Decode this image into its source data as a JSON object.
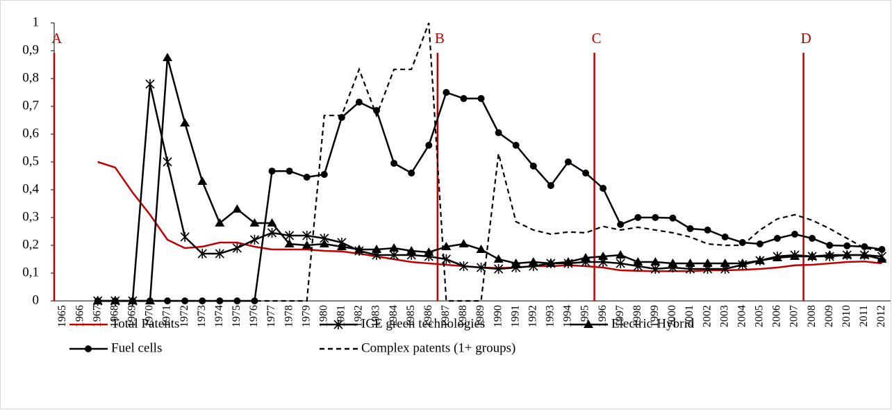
{
  "chart_data": {
    "type": "line",
    "categories": [
      "1965",
      "1966",
      "1967",
      "1968",
      "1969",
      "1970",
      "1971",
      "1972",
      "1973",
      "1974",
      "1975",
      "1976",
      "1977",
      "1978",
      "1979",
      "1980",
      "1981",
      "1982",
      "1983",
      "1984",
      "1985",
      "1986",
      "1987",
      "1988",
      "1989",
      "1990",
      "1991",
      "1992",
      "1993",
      "1994",
      "1995",
      "1996",
      "1997",
      "1998",
      "1999",
      "2000",
      "2001",
      "2002",
      "2003",
      "2004",
      "2005",
      "2006",
      "2007",
      "2008",
      "2009",
      "2010",
      "2011",
      "2012"
    ],
    "series": [
      {
        "name": "Total Patents",
        "color": "#c00000",
        "marker": "none",
        "dash": false,
        "values": [
          null,
          null,
          0.5,
          0.48,
          0.39,
          0.31,
          0.22,
          0.19,
          0.195,
          0.21,
          0.21,
          0.195,
          0.185,
          0.185,
          0.185,
          0.18,
          0.178,
          0.17,
          0.16,
          0.15,
          0.14,
          0.135,
          0.13,
          0.125,
          0.12,
          0.118,
          0.12,
          0.125,
          0.125,
          0.128,
          0.125,
          0.12,
          0.11,
          0.108,
          0.107,
          0.107,
          0.107,
          0.11,
          0.11,
          0.112,
          0.115,
          0.12,
          0.128,
          0.13,
          0.135,
          0.14,
          0.142,
          0.135
        ]
      },
      {
        "name": "ICE green technologies",
        "color": "#000000",
        "marker": "star",
        "dash": false,
        "values": [
          null,
          null,
          0,
          0,
          0,
          0.78,
          0.5,
          0.23,
          0.17,
          0.17,
          0.19,
          0.22,
          0.245,
          0.235,
          0.235,
          0.225,
          0.21,
          0.18,
          0.165,
          0.165,
          0.165,
          0.16,
          0.15,
          0.125,
          0.12,
          0.115,
          0.12,
          0.125,
          0.135,
          0.135,
          0.14,
          0.14,
          0.135,
          0.125,
          0.115,
          0.12,
          0.115,
          0.115,
          0.115,
          0.13,
          0.145,
          0.16,
          0.165,
          0.16,
          0.16,
          0.165,
          0.165,
          0.16
        ]
      },
      {
        "name": "Electric-Hybrid",
        "color": "#000000",
        "marker": "triangle",
        "dash": false,
        "values": [
          null,
          null,
          0,
          0,
          0,
          0,
          0.875,
          0.64,
          0.43,
          0.28,
          0.33,
          0.28,
          0.28,
          0.205,
          0.2,
          0.205,
          0.195,
          0.185,
          0.185,
          0.19,
          0.18,
          0.175,
          0.195,
          0.205,
          0.185,
          0.15,
          0.135,
          0.14,
          0.135,
          0.14,
          0.155,
          0.16,
          0.165,
          0.14,
          0.14,
          0.135,
          0.135,
          0.135,
          0.135,
          0.135,
          0.145,
          0.155,
          0.16,
          0.16,
          0.165,
          0.165,
          0.165,
          0.15
        ]
      },
      {
        "name": "Fuel cells",
        "color": "#000000",
        "marker": "circle",
        "dash": false,
        "values": [
          null,
          null,
          0,
          0,
          0,
          0,
          0,
          0,
          0,
          0,
          0,
          0,
          0.467,
          0.467,
          0.445,
          0.455,
          0.66,
          0.715,
          0.685,
          0.495,
          0.46,
          0.56,
          0.75,
          0.728,
          0.728,
          0.605,
          0.56,
          0.485,
          0.415,
          0.5,
          0.46,
          0.405,
          0.275,
          0.3,
          0.3,
          0.298,
          0.26,
          0.255,
          0.23,
          0.21,
          0.205,
          0.225,
          0.24,
          0.225,
          0.2,
          0.198,
          0.195,
          0.185
        ]
      },
      {
        "name": "Complex patents (1+ groups)",
        "color": "#000000",
        "marker": "none",
        "dash": true,
        "values": [
          null,
          null,
          0,
          0,
          0,
          0,
          0,
          0,
          0,
          0,
          0,
          0,
          0,
          0,
          0,
          0.667,
          0.667,
          0.833,
          0.667,
          0.833,
          0.833,
          1,
          0,
          0,
          0,
          0.53,
          0.285,
          0.255,
          0.24,
          0.248,
          0.245,
          0.268,
          0.255,
          0.265,
          0.255,
          0.245,
          0.23,
          0.205,
          0.2,
          0.2,
          0.255,
          0.295,
          0.31,
          0.29,
          0.26,
          0.225,
          0.19,
          0.18
        ]
      }
    ],
    "ylim": [
      0,
      1
    ],
    "yticks": [
      0,
      {
        "value": 0.1,
        "label": "0,1"
      },
      {
        "value": 0.2,
        "label": "0,2"
      },
      {
        "value": 0.3,
        "label": "0,3"
      },
      {
        "value": 0.4,
        "label": "0,4"
      },
      {
        "value": 0.5,
        "label": "0,5"
      },
      {
        "value": 0.6,
        "label": "0,6"
      },
      {
        "value": 0.7,
        "label": "0,7"
      },
      {
        "value": 0.8,
        "label": "0,8"
      },
      {
        "value": 0.9,
        "label": "0,9"
      },
      1
    ],
    "annotations": [
      {
        "label": "A",
        "x": 1964.5,
        "color": "#c00000"
      },
      {
        "label": "B",
        "x": 1986.5,
        "color": "#c00000"
      },
      {
        "label": "C",
        "x": 1995.5,
        "color": "#c00000"
      },
      {
        "label": "D",
        "x": 2007.5,
        "color": "#c00000"
      }
    ],
    "grid": false
  }
}
